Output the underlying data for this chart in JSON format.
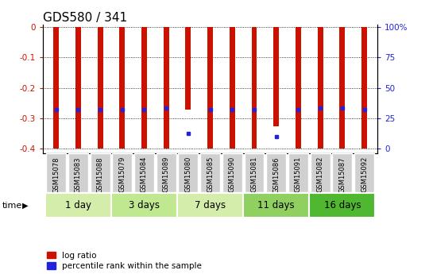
{
  "title": "GDS580 / 341",
  "samples": [
    "GSM15078",
    "GSM15083",
    "GSM15088",
    "GSM15079",
    "GSM15084",
    "GSM15089",
    "GSM15080",
    "GSM15085",
    "GSM15090",
    "GSM15081",
    "GSM15086",
    "GSM15091",
    "GSM15082",
    "GSM15087",
    "GSM15092"
  ],
  "log_ratios": [
    -0.4,
    -0.4,
    -0.4,
    -0.4,
    -0.4,
    -0.4,
    -0.27,
    -0.4,
    -0.4,
    -0.4,
    -0.325,
    -0.4,
    -0.4,
    -0.4,
    -0.4
  ],
  "percentile_ranks": [
    -0.272,
    -0.272,
    -0.272,
    -0.27,
    -0.272,
    -0.267,
    -0.35,
    -0.272,
    -0.272,
    -0.272,
    -0.36,
    -0.272,
    -0.267,
    -0.267,
    -0.272
  ],
  "groups": [
    {
      "label": "1 day",
      "start": 0,
      "end": 3,
      "color": "#d4edaa"
    },
    {
      "label": "3 days",
      "start": 3,
      "end": 6,
      "color": "#c0e890"
    },
    {
      "label": "7 days",
      "start": 6,
      "end": 9,
      "color": "#d4edaa"
    },
    {
      "label": "11 days",
      "start": 9,
      "end": 12,
      "color": "#90d060"
    },
    {
      "label": "16 days",
      "start": 12,
      "end": 15,
      "color": "#50b830"
    }
  ],
  "ylim": [
    -0.415,
    0.008
  ],
  "yticks": [
    0,
    -0.1,
    -0.2,
    -0.3,
    -0.4
  ],
  "ytick_labels": [
    "0",
    "-0.1",
    "-0.2",
    "-0.3",
    "-0.4"
  ],
  "right_ytick_vals": [
    0,
    -0.1,
    -0.2,
    -0.3,
    -0.4
  ],
  "right_ytick_labels": [
    "100%",
    "75",
    "50",
    "25",
    "0"
  ],
  "bar_color": "#cc1100",
  "dot_color": "#2222dd",
  "bg_color": "#ffffff",
  "left_tick_color": "#cc1100",
  "right_tick_color": "#2222dd",
  "bar_width": 0.25,
  "title_fontsize": 11,
  "tick_fontsize": 7.5,
  "sample_fontsize": 6,
  "group_fontsize": 8.5
}
